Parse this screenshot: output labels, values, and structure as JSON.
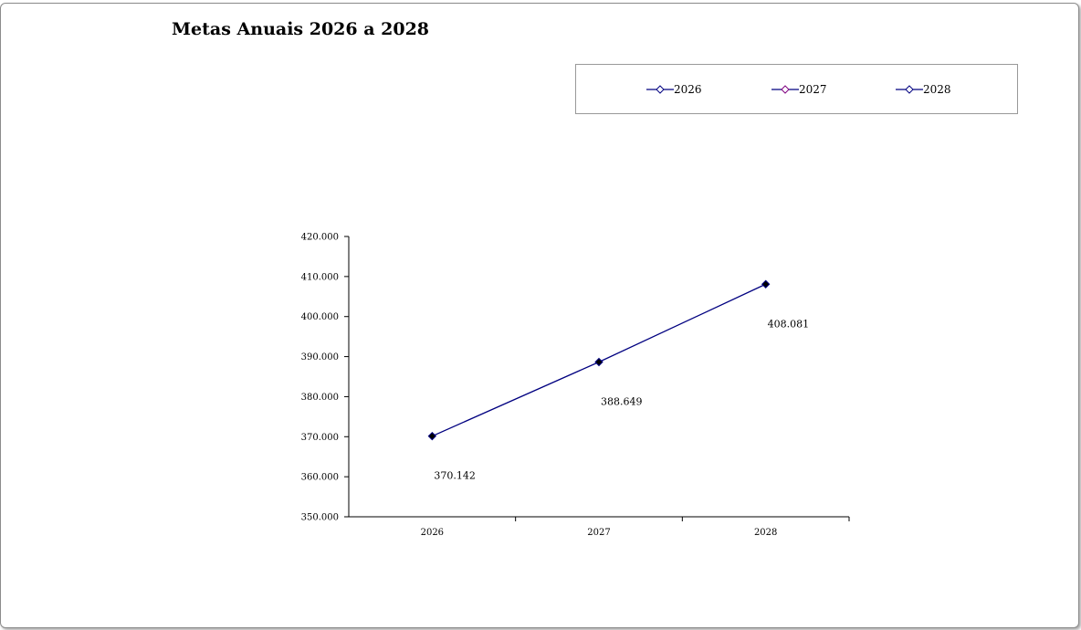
{
  "chart_data": {
    "type": "line",
    "title": "Metas Anuais 2026 a 2028",
    "categories": [
      "2026",
      "2027",
      "2028"
    ],
    "series": [
      {
        "values": [
          370142,
          388649,
          408081
        ]
      }
    ],
    "data_labels": [
      "370.142",
      "388.649",
      "408.081"
    ],
    "y_ticks": [
      "350.000",
      "360.000",
      "370.000",
      "380.000",
      "390.000",
      "400.000",
      "410.000",
      "420.000"
    ],
    "ylim": [
      350000,
      420000
    ],
    "legend": {
      "position": "top-right",
      "entries": [
        "2026",
        "2027",
        "2028"
      ]
    },
    "grid": false,
    "colors": {
      "line": "#000080",
      "marker_fill": "#000000",
      "legend_marker_fill": "#ffffff"
    }
  }
}
